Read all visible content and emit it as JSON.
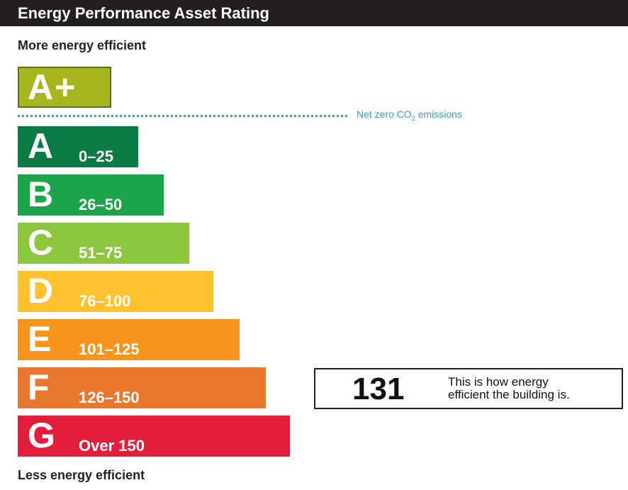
{
  "header": {
    "title": "Energy Performance Asset Rating"
  },
  "captions": {
    "top": "More energy efficient",
    "bottom": "Less energy efficient"
  },
  "aplus": {
    "label": "A+",
    "color": "#a5b61f"
  },
  "net_zero": {
    "prefix": "Net zero CO",
    "subscript": "2",
    "suffix": " emissions"
  },
  "bands": [
    {
      "letter": "A",
      "range": "0–25",
      "color": "#0b7a45"
    },
    {
      "letter": "B",
      "range": "26–50",
      "color": "#1da44a"
    },
    {
      "letter": "C",
      "range": "51–75",
      "color": "#8dc63f"
    },
    {
      "letter": "D",
      "range": "76–100",
      "color": "#fec22e"
    },
    {
      "letter": "E",
      "range": "101–125",
      "color": "#f7941d"
    },
    {
      "letter": "F",
      "range": "126–150",
      "color": "#e8772e"
    },
    {
      "letter": "G",
      "range": "Over 150",
      "color": "#e31d3c"
    }
  ],
  "indicator": {
    "value": "131",
    "message_line1": "This is how energy",
    "message_line2": "efficient the building is.",
    "arrow_color": "#e8772e"
  }
}
